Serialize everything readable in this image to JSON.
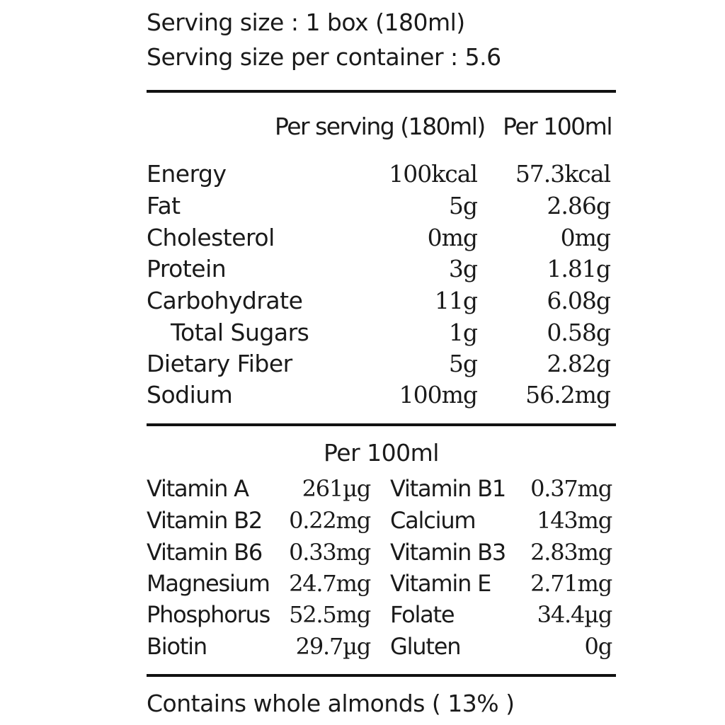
{
  "serving": {
    "size": "Serving size : 1 box (180ml)",
    "per_container": "Serving size per container : 5.6"
  },
  "table_headers": {
    "per_serving": "Per serving (180ml)",
    "per_100ml": "Per 100ml"
  },
  "nutrients": [
    {
      "name": "Energy",
      "per_serving": "100kcal",
      "per_100ml": "57.3kcal"
    },
    {
      "name": "Fat",
      "per_serving": "5g",
      "per_100ml": "2.86g"
    },
    {
      "name": "Cholesterol",
      "per_serving": "0mg",
      "per_100ml": "0mg"
    },
    {
      "name": "Protein",
      "per_serving": "3g",
      "per_100ml": "1.81g"
    },
    {
      "name": "Carbohydrate",
      "per_serving": "11g",
      "per_100ml": "6.08g"
    },
    {
      "name": "Total Sugars",
      "per_serving": "1g",
      "per_100ml": "0.58g"
    },
    {
      "name": "Dietary Fiber",
      "per_serving": "5g",
      "per_100ml": "2.82g"
    },
    {
      "name": "Sodium",
      "per_serving": "100mg",
      "per_100ml": "56.2mg"
    }
  ],
  "vitamins_header": "Per 100ml",
  "vitamins": [
    {
      "left_name": "Vitamin A",
      "left_value": "261µg",
      "right_name": "Vitamin B1",
      "right_value": "0.37mg"
    },
    {
      "left_name": "Vitamin B2",
      "left_value": "0.22mg",
      "right_name": "Calcium",
      "right_value": "143mg"
    },
    {
      "left_name": "Vitamin B6",
      "left_value": "0.33mg",
      "right_name": "Vitamin B3",
      "right_value": "2.83mg"
    },
    {
      "left_name": "Magnesium",
      "left_value": "24.7mg",
      "right_name": "Vitamin E",
      "right_value": "2.71mg"
    },
    {
      "left_name": "Phosphorus",
      "left_value": "52.5mg",
      "right_name": "Folate",
      "right_value": "34.4µg"
    },
    {
      "left_name": "Biotin",
      "left_value": "29.7µg",
      "right_name": "Gluten",
      "right_value": "0g"
    }
  ],
  "footer": "Contains whole almonds ( 13% )"
}
